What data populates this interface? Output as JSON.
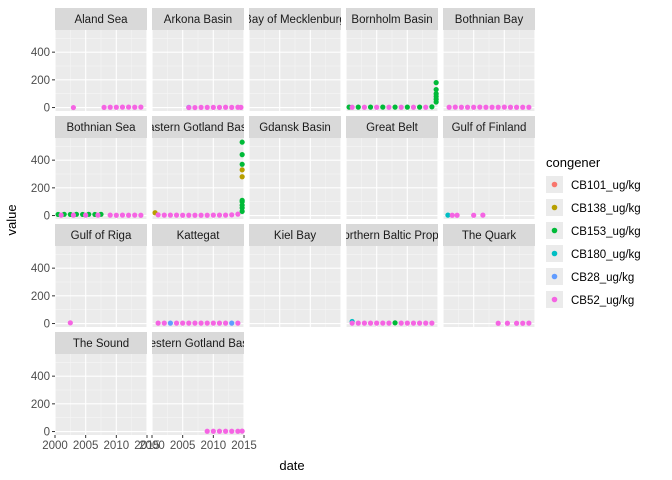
{
  "chart_data": {
    "type": "scatter",
    "xlabel": "date",
    "ylabel": "value",
    "xlim": [
      2000,
      2015
    ],
    "ylim": [
      -25,
      560
    ],
    "x_ticks": [
      2000,
      2005,
      2010,
      2015
    ],
    "x_tick_labels": [
      "2000",
      "2005",
      "2010",
      "2015"
    ],
    "y_ticks": [
      0,
      200,
      400
    ],
    "y_tick_labels": [
      "0",
      "200",
      "400"
    ],
    "grid": true,
    "legend_position": "right",
    "legend": {
      "title": "congener",
      "entries": [
        {
          "name": "CB101_ug/kg",
          "color": "#F8766D"
        },
        {
          "name": "CB138_ug/kg",
          "color": "#B79F00"
        },
        {
          "name": "CB153_ug/kg",
          "color": "#00BA38"
        },
        {
          "name": "CB180_ug/kg",
          "color": "#00BFC4"
        },
        {
          "name": "CB28_ug/kg",
          "color": "#619CFF"
        },
        {
          "name": "CB52_ug/kg",
          "color": "#F564E3"
        }
      ]
    },
    "facets": [
      {
        "label": "Aland Sea",
        "points": [
          {
            "x": 2003,
            "y": 0,
            "s": 5
          },
          {
            "x": 2008,
            "y": 1,
            "s": 5
          },
          {
            "x": 2009,
            "y": 2,
            "s": 5
          },
          {
            "x": 2010,
            "y": 2,
            "s": 5
          },
          {
            "x": 2011,
            "y": 3,
            "s": 5
          },
          {
            "x": 2012,
            "y": 3,
            "s": 5
          },
          {
            "x": 2013,
            "y": 2,
            "s": 5
          },
          {
            "x": 2014,
            "y": 3,
            "s": 5
          }
        ]
      },
      {
        "label": "Arkona Basin",
        "points": [
          {
            "x": 2006,
            "y": 1,
            "s": 4
          },
          {
            "x": 2006,
            "y": 0,
            "s": 5
          },
          {
            "x": 2007,
            "y": 0,
            "s": 5
          },
          {
            "x": 2008,
            "y": 1,
            "s": 5
          },
          {
            "x": 2009,
            "y": 1,
            "s": 5
          },
          {
            "x": 2010,
            "y": 1,
            "s": 5
          },
          {
            "x": 2011,
            "y": 1,
            "s": 5
          },
          {
            "x": 2012,
            "y": 2,
            "s": 5
          },
          {
            "x": 2013,
            "y": 1,
            "s": 5
          },
          {
            "x": 2014,
            "y": 2,
            "s": 5
          },
          {
            "x": 2014.5,
            "y": 1,
            "s": 5
          }
        ]
      },
      {
        "label": "Bay of Mecklenburg",
        "points": []
      },
      {
        "label": "Bornholm Basin",
        "points": [
          {
            "x": 2000.5,
            "y": 3,
            "s": 2
          },
          {
            "x": 2001,
            "y": 2,
            "s": 5
          },
          {
            "x": 2002,
            "y": 3,
            "s": 2
          },
          {
            "x": 2003,
            "y": 2,
            "s": 5
          },
          {
            "x": 2004,
            "y": 3,
            "s": 2
          },
          {
            "x": 2005,
            "y": 2,
            "s": 5
          },
          {
            "x": 2006,
            "y": 3,
            "s": 2
          },
          {
            "x": 2007,
            "y": 2,
            "s": 5
          },
          {
            "x": 2008,
            "y": 3,
            "s": 2
          },
          {
            "x": 2009,
            "y": 2,
            "s": 5
          },
          {
            "x": 2010,
            "y": 3,
            "s": 2
          },
          {
            "x": 2011,
            "y": 2,
            "s": 5
          },
          {
            "x": 2012,
            "y": 3,
            "s": 2
          },
          {
            "x": 2013,
            "y": 2,
            "s": 5
          },
          {
            "x": 2014,
            "y": 5,
            "s": 2
          },
          {
            "x": 2014.7,
            "y": 40,
            "s": 2
          },
          {
            "x": 2014.7,
            "y": 60,
            "s": 2
          },
          {
            "x": 2014.7,
            "y": 80,
            "s": 2
          },
          {
            "x": 2014.7,
            "y": 100,
            "s": 2
          },
          {
            "x": 2014.7,
            "y": 130,
            "s": 2
          },
          {
            "x": 2014.7,
            "y": 180,
            "s": 2
          }
        ]
      },
      {
        "label": "Bothnian Bay",
        "points": [
          {
            "x": 2001,
            "y": 2,
            "s": 5
          },
          {
            "x": 2002,
            "y": 3,
            "s": 5
          },
          {
            "x": 2003,
            "y": 2,
            "s": 5
          },
          {
            "x": 2004,
            "y": 2,
            "s": 5
          },
          {
            "x": 2005,
            "y": 2,
            "s": 5
          },
          {
            "x": 2006,
            "y": 3,
            "s": 5
          },
          {
            "x": 2007,
            "y": 2,
            "s": 5
          },
          {
            "x": 2008,
            "y": 2,
            "s": 5
          },
          {
            "x": 2009,
            "y": 2,
            "s": 5
          },
          {
            "x": 2010,
            "y": 3,
            "s": 5
          },
          {
            "x": 2011,
            "y": 2,
            "s": 5
          },
          {
            "x": 2012,
            "y": 2,
            "s": 5
          },
          {
            "x": 2013,
            "y": 2,
            "s": 5
          },
          {
            "x": 2014,
            "y": 2,
            "s": 5
          }
        ]
      },
      {
        "label": "Bothnian Sea",
        "points": [
          {
            "x": 2000.5,
            "y": 8,
            "s": 2
          },
          {
            "x": 2001.5,
            "y": 9,
            "s": 2
          },
          {
            "x": 2002.5,
            "y": 8,
            "s": 2
          },
          {
            "x": 2003.5,
            "y": 9,
            "s": 2
          },
          {
            "x": 2004.5,
            "y": 8,
            "s": 2
          },
          {
            "x": 2005.5,
            "y": 9,
            "s": 2
          },
          {
            "x": 2006.5,
            "y": 8,
            "s": 2
          },
          {
            "x": 2007.5,
            "y": 9,
            "s": 2
          },
          {
            "x": 2001,
            "y": 3,
            "s": 5
          },
          {
            "x": 2003,
            "y": 3,
            "s": 5
          },
          {
            "x": 2005,
            "y": 3,
            "s": 5
          },
          {
            "x": 2007,
            "y": 3,
            "s": 5
          },
          {
            "x": 2009,
            "y": 3,
            "s": 5
          },
          {
            "x": 2010,
            "y": 2,
            "s": 5
          },
          {
            "x": 2011,
            "y": 3,
            "s": 5
          },
          {
            "x": 2012,
            "y": 2,
            "s": 5
          },
          {
            "x": 2013,
            "y": 3,
            "s": 5
          },
          {
            "x": 2014,
            "y": 2,
            "s": 5
          }
        ]
      },
      {
        "label": "Eastern Gotland Basin",
        "points": [
          {
            "x": 2000.5,
            "y": 20,
            "s": 1
          },
          {
            "x": 2001,
            "y": 5,
            "s": 5
          },
          {
            "x": 2002,
            "y": 3,
            "s": 5
          },
          {
            "x": 2003,
            "y": 3,
            "s": 5
          },
          {
            "x": 2004,
            "y": 3,
            "s": 5
          },
          {
            "x": 2005,
            "y": 2,
            "s": 5
          },
          {
            "x": 2006,
            "y": 2,
            "s": 5
          },
          {
            "x": 2007,
            "y": 2,
            "s": 5
          },
          {
            "x": 2008,
            "y": 2,
            "s": 5
          },
          {
            "x": 2009,
            "y": 2,
            "s": 5
          },
          {
            "x": 2010,
            "y": 3,
            "s": 5
          },
          {
            "x": 2011,
            "y": 3,
            "s": 5
          },
          {
            "x": 2012,
            "y": 3,
            "s": 5
          },
          {
            "x": 2013,
            "y": 5,
            "s": 5
          },
          {
            "x": 2014,
            "y": 10,
            "s": 5
          },
          {
            "x": 2014.7,
            "y": 30,
            "s": 2
          },
          {
            "x": 2014.7,
            "y": 55,
            "s": 2
          },
          {
            "x": 2014.7,
            "y": 75,
            "s": 2
          },
          {
            "x": 2014.7,
            "y": 100,
            "s": 2
          },
          {
            "x": 2014.7,
            "y": 110,
            "s": 2
          },
          {
            "x": 2014.7,
            "y": 280,
            "s": 1
          },
          {
            "x": 2014.7,
            "y": 330,
            "s": 1
          },
          {
            "x": 2014.7,
            "y": 370,
            "s": 2
          },
          {
            "x": 2014.7,
            "y": 440,
            "s": 2
          },
          {
            "x": 2014.7,
            "y": 530,
            "s": 2
          }
        ]
      },
      {
        "label": "Gdansk Basin",
        "points": []
      },
      {
        "label": "Great Belt",
        "points": []
      },
      {
        "label": "Gulf of Finland",
        "points": [
          {
            "x": 2000.8,
            "y": 3,
            "s": 3
          },
          {
            "x": 2001.5,
            "y": 2,
            "s": 5
          },
          {
            "x": 2002.3,
            "y": 2,
            "s": 5
          },
          {
            "x": 2005,
            "y": 2,
            "s": 5
          },
          {
            "x": 2006.5,
            "y": 3,
            "s": 5
          }
        ]
      },
      {
        "label": "Gulf of Riga",
        "points": [
          {
            "x": 2002.5,
            "y": 5,
            "s": 5
          }
        ]
      },
      {
        "label": "Kattegat",
        "points": [
          {
            "x": 2001,
            "y": 3,
            "s": 5
          },
          {
            "x": 2002,
            "y": 3,
            "s": 5
          },
          {
            "x": 2003,
            "y": 3,
            "s": 4
          },
          {
            "x": 2004,
            "y": 3,
            "s": 5
          },
          {
            "x": 2005,
            "y": 3,
            "s": 5
          },
          {
            "x": 2006,
            "y": 3,
            "s": 5
          },
          {
            "x": 2007,
            "y": 3,
            "s": 5
          },
          {
            "x": 2008,
            "y": 3,
            "s": 5
          },
          {
            "x": 2009,
            "y": 3,
            "s": 5
          },
          {
            "x": 2010,
            "y": 3,
            "s": 5
          },
          {
            "x": 2011,
            "y": 3,
            "s": 5
          },
          {
            "x": 2012,
            "y": 3,
            "s": 5
          },
          {
            "x": 2013,
            "y": 3,
            "s": 4
          },
          {
            "x": 2014,
            "y": 3,
            "s": 5
          }
        ]
      },
      {
        "label": "Kiel Bay",
        "points": []
      },
      {
        "label": "Northern Baltic Proper",
        "points": [
          {
            "x": 2001,
            "y": 15,
            "s": 3
          },
          {
            "x": 2001,
            "y": 3,
            "s": 5
          },
          {
            "x": 2002,
            "y": 3,
            "s": 5
          },
          {
            "x": 2003,
            "y": 3,
            "s": 5
          },
          {
            "x": 2004,
            "y": 3,
            "s": 5
          },
          {
            "x": 2005,
            "y": 3,
            "s": 5
          },
          {
            "x": 2006,
            "y": 3,
            "s": 5
          },
          {
            "x": 2007,
            "y": 3,
            "s": 5
          },
          {
            "x": 2008,
            "y": 5,
            "s": 2
          },
          {
            "x": 2009,
            "y": 3,
            "s": 5
          },
          {
            "x": 2010,
            "y": 3,
            "s": 5
          },
          {
            "x": 2011,
            "y": 3,
            "s": 5
          },
          {
            "x": 2012,
            "y": 3,
            "s": 5
          },
          {
            "x": 2013,
            "y": 3,
            "s": 5
          },
          {
            "x": 2014,
            "y": 3,
            "s": 5
          }
        ]
      },
      {
        "label": "The Quark",
        "points": [
          {
            "x": 2009,
            "y": 2,
            "s": 5
          },
          {
            "x": 2010.5,
            "y": 2,
            "s": 5
          },
          {
            "x": 2012,
            "y": 2,
            "s": 5
          },
          {
            "x": 2013,
            "y": 2,
            "s": 5
          },
          {
            "x": 2014,
            "y": 3,
            "s": 5
          }
        ]
      },
      {
        "label": "The Sound",
        "points": []
      },
      {
        "label": "Western Gotland Basin",
        "points": [
          {
            "x": 2009,
            "y": 2,
            "s": 5
          },
          {
            "x": 2010,
            "y": 2,
            "s": 5
          },
          {
            "x": 2011,
            "y": 2,
            "s": 5
          },
          {
            "x": 2012,
            "y": 2,
            "s": 5
          },
          {
            "x": 2013,
            "y": 2,
            "s": 5
          },
          {
            "x": 2014,
            "y": 2,
            "s": 5
          },
          {
            "x": 2014.7,
            "y": 3,
            "s": 5
          }
        ]
      }
    ]
  }
}
